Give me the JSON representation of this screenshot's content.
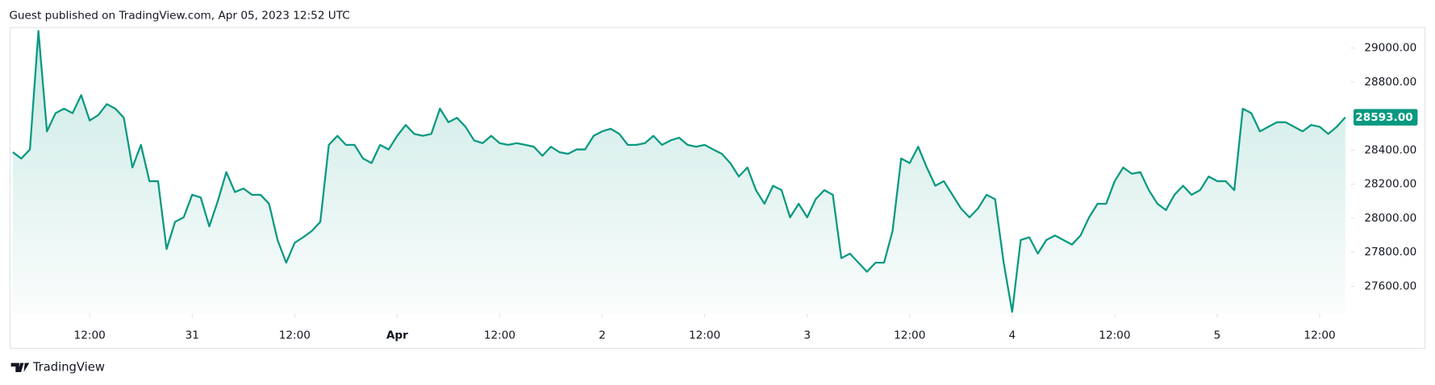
{
  "header": "Guest published on TradingView.com, Apr 05, 2023 12:52 UTC",
  "footer": "TradingView",
  "chart_data": {
    "type": "line",
    "color": "#089981",
    "values": [
      28388,
      28351,
      28404,
      29100,
      28510,
      28617,
      28644,
      28617,
      28723,
      28574,
      28606,
      28670,
      28644,
      28590,
      28298,
      28431,
      28218,
      28218,
      27819,
      27979,
      28005,
      28138,
      28122,
      27952,
      28101,
      28271,
      28154,
      28175,
      28138,
      28138,
      28085,
      27872,
      27739,
      27856,
      27888,
      27925,
      27979,
      28431,
      28484,
      28431,
      28431,
      28351,
      28324,
      28431,
      28404,
      28484,
      28548,
      28495,
      28484,
      28495,
      28644,
      28564,
      28590,
      28537,
      28457,
      28441,
      28484,
      28441,
      28431,
      28441,
      28431,
      28420,
      28367,
      28420,
      28388,
      28378,
      28404,
      28404,
      28484,
      28510,
      28526,
      28495,
      28431,
      28431,
      28441,
      28484,
      28431,
      28457,
      28473,
      28431,
      28420,
      28431,
      28404,
      28378,
      28324,
      28245,
      28298,
      28165,
      28085,
      28191,
      28165,
      28005,
      28085,
      28005,
      28112,
      28165,
      28138,
      27766,
      27792,
      27739,
      27686,
      27739,
      27739,
      27925,
      28351,
      28324,
      28420,
      28298,
      28191,
      28218,
      28138,
      28058,
      28005,
      28058,
      28138,
      28112,
      27739,
      27450,
      27872,
      27888,
      27792,
      27872,
      27899,
      27872,
      27845,
      27899,
      28005,
      28085,
      28085,
      28218,
      28298,
      28261,
      28271,
      28165,
      28085,
      28048,
      28138,
      28191,
      28138,
      28165,
      28245,
      28218,
      28218,
      28165,
      28644,
      28617,
      28510,
      28537,
      28564,
      28564,
      28537,
      28510,
      28548,
      28537,
      28495,
      28537,
      28593
    ],
    "last_value_label": "28593.00",
    "xlim": [
      0,
      156
    ],
    "xticks": [
      {
        "value": 9,
        "label": "12:00"
      },
      {
        "value": 21,
        "label": "31"
      },
      {
        "value": 33,
        "label": "12:00"
      },
      {
        "value": 45,
        "label": "Apr"
      },
      {
        "value": 57,
        "label": "12:00"
      },
      {
        "value": 69,
        "label": "2"
      },
      {
        "value": 81,
        "label": "12:00"
      },
      {
        "value": 93,
        "label": "3"
      },
      {
        "value": 105,
        "label": "12:00"
      },
      {
        "value": 117,
        "label": "4"
      },
      {
        "value": 129,
        "label": "12:00"
      },
      {
        "value": 141,
        "label": "5"
      },
      {
        "value": 153,
        "label": "12:00"
      }
    ],
    "ylim": [
      27440,
      29120
    ],
    "yticks": [
      {
        "value": 27600,
        "label": "27600.00"
      },
      {
        "value": 27800,
        "label": "27800.00"
      },
      {
        "value": 28000,
        "label": "28000.00"
      },
      {
        "value": 28200,
        "label": "28200.00"
      },
      {
        "value": 28400,
        "label": "28400.00"
      },
      {
        "value": 28600,
        "label": "28600.00"
      },
      {
        "value": 28800,
        "label": "28800.00"
      },
      {
        "value": 29000,
        "label": "29000.00"
      }
    ]
  }
}
